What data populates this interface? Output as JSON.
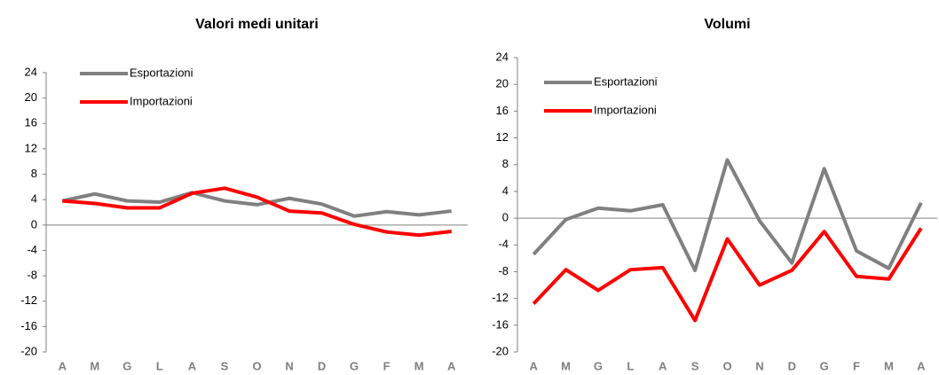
{
  "chart_data": [
    {
      "type": "line",
      "title": "Valori medi unitari",
      "categories": [
        "A",
        "M",
        "G",
        "L",
        "A",
        "S",
        "O",
        "N",
        "D",
        "G",
        "F",
        "M",
        "A"
      ],
      "series": [
        {
          "name": "Esportazioni",
          "color": "#808080",
          "values": [
            3.8,
            4.9,
            3.8,
            3.6,
            5.1,
            3.8,
            3.2,
            4.2,
            3.3,
            1.4,
            2.1,
            1.6,
            2.2
          ]
        },
        {
          "name": "Importazioni",
          "color": "#ff0000",
          "values": [
            3.8,
            3.4,
            2.7,
            2.7,
            5.0,
            5.8,
            4.4,
            2.2,
            1.9,
            0.1,
            -1.1,
            -1.6,
            -1.0
          ]
        }
      ],
      "ylim": [
        -20,
        24
      ],
      "yticks": [
        -20,
        -16,
        -12,
        -8,
        -4,
        0,
        4,
        8,
        12,
        16,
        20,
        24
      ],
      "legend": "top-left",
      "grid": false
    },
    {
      "type": "line",
      "title": "Volumi",
      "categories": [
        "A",
        "M",
        "G",
        "L",
        "A",
        "S",
        "O",
        "N",
        "D",
        "G",
        "F",
        "M",
        "A"
      ],
      "series": [
        {
          "name": "Esportazioni",
          "color": "#808080",
          "values": [
            -5.4,
            -0.2,
            1.5,
            1.1,
            2.0,
            -7.8,
            8.7,
            -0.4,
            -6.7,
            7.4,
            -4.9,
            -7.5,
            2.3
          ]
        },
        {
          "name": "Importazioni",
          "color": "#ff0000",
          "values": [
            -12.8,
            -7.7,
            -10.8,
            -7.7,
            -7.4,
            -15.3,
            -3.1,
            -10.0,
            -7.8,
            -2.0,
            -8.7,
            -9.1,
            -1.5
          ]
        }
      ],
      "ylim": [
        -20,
        24
      ],
      "yticks": [
        -20,
        -16,
        -12,
        -8,
        -4,
        0,
        4,
        8,
        12,
        16,
        20,
        24
      ],
      "legend": "top-left",
      "grid": false
    }
  ]
}
